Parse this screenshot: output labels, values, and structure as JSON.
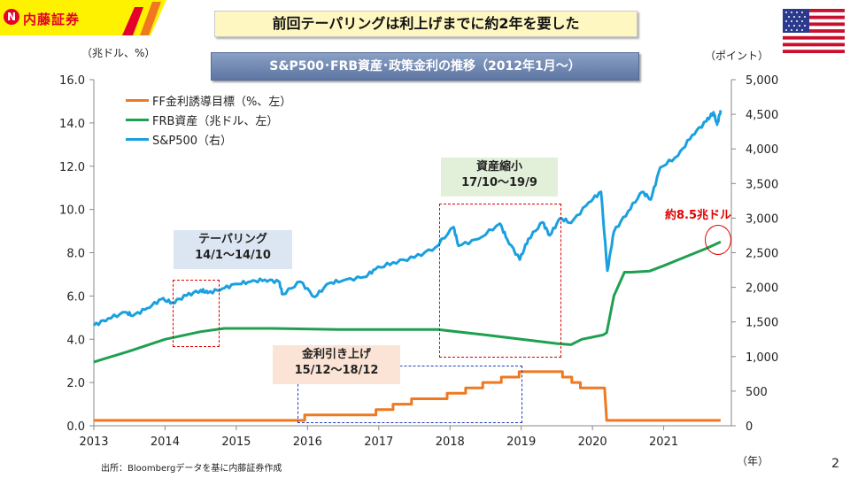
{
  "brand": {
    "name": "内藤証券",
    "color": "#e4002b",
    "bg": "#fff200"
  },
  "title": "前回テーパリングは利上げまでに約2年を要した",
  "subtitle": "S&P500･FRB資産･政策金利の推移（2012年1月～）",
  "flag": "us-flag-icon",
  "left_unit": "（兆ドル、%）",
  "right_unit": "（ポイント）",
  "x_unit": "（年）",
  "source": "出所：Bloombergデータを基に内藤証券作成",
  "page_number": "2",
  "annotations": {
    "tapering": {
      "line1": "テーパリング",
      "line2": "14/1～14/10"
    },
    "qt": {
      "line1": "資産縮小",
      "line2": "17/10～19/9"
    },
    "hike": {
      "line1": "金利引き上げ",
      "line2": "15/12～18/12"
    },
    "frb_note": "約8.5兆ドル"
  },
  "chart_data": {
    "type": "line",
    "title": "S&P500･FRB資産･政策金利の推移（2012年1月～）",
    "xlabel": "（年）",
    "ylabel_left": "（兆ドル、%）",
    "ylabel_right": "（ポイント）",
    "x_range": [
      2013,
      2021.95
    ],
    "x_ticks": [
      "2013",
      "2014",
      "2015",
      "2016",
      "2017",
      "2018",
      "2019",
      "2020",
      "2021"
    ],
    "y_left_range": [
      0,
      16
    ],
    "y_left_ticks": [
      "0.0",
      "2.0",
      "4.0",
      "6.0",
      "8.0",
      "10.0",
      "12.0",
      "14.0",
      "16.0"
    ],
    "y_right_range": [
      0,
      5000
    ],
    "y_right_ticks": [
      "0",
      "500",
      "1,000",
      "1,500",
      "2,000",
      "2,500",
      "3,000",
      "3,500",
      "4,000",
      "4,500",
      "5,000"
    ],
    "series": [
      {
        "name": "FF金利誘導目標（%、左）",
        "axis": "left",
        "color": "#f07820",
        "points": [
          [
            2013.0,
            0.25
          ],
          [
            2015.96,
            0.25
          ],
          [
            2015.96,
            0.5
          ],
          [
            2016.96,
            0.5
          ],
          [
            2016.96,
            0.75
          ],
          [
            2017.2,
            0.75
          ],
          [
            2017.2,
            1.0
          ],
          [
            2017.46,
            1.0
          ],
          [
            2017.46,
            1.25
          ],
          [
            2017.96,
            1.25
          ],
          [
            2017.96,
            1.5
          ],
          [
            2018.22,
            1.5
          ],
          [
            2018.22,
            1.75
          ],
          [
            2018.46,
            1.75
          ],
          [
            2018.46,
            2.0
          ],
          [
            2018.72,
            2.0
          ],
          [
            2018.72,
            2.25
          ],
          [
            2018.97,
            2.25
          ],
          [
            2018.97,
            2.5
          ],
          [
            2019.58,
            2.5
          ],
          [
            2019.58,
            2.25
          ],
          [
            2019.71,
            2.25
          ],
          [
            2019.71,
            2.0
          ],
          [
            2019.83,
            2.0
          ],
          [
            2019.83,
            1.75
          ],
          [
            2020.17,
            1.75
          ],
          [
            2020.2,
            0.25
          ],
          [
            2021.8,
            0.25
          ]
        ]
      },
      {
        "name": "FRB資産（兆ドル、左）",
        "axis": "left",
        "color": "#1fa050",
        "points": [
          [
            2013.0,
            2.95
          ],
          [
            2013.5,
            3.45
          ],
          [
            2014.0,
            4.0
          ],
          [
            2014.5,
            4.35
          ],
          [
            2014.83,
            4.5
          ],
          [
            2015.5,
            4.5
          ],
          [
            2016.5,
            4.45
          ],
          [
            2017.5,
            4.45
          ],
          [
            2017.83,
            4.45
          ],
          [
            2018.5,
            4.2
          ],
          [
            2019.0,
            4.0
          ],
          [
            2019.5,
            3.8
          ],
          [
            2019.7,
            3.75
          ],
          [
            2019.85,
            4.0
          ],
          [
            2020.15,
            4.2
          ],
          [
            2020.2,
            4.3
          ],
          [
            2020.3,
            6.0
          ],
          [
            2020.45,
            7.1
          ],
          [
            2020.55,
            7.1
          ],
          [
            2020.8,
            7.15
          ],
          [
            2021.0,
            7.4
          ],
          [
            2021.3,
            7.8
          ],
          [
            2021.6,
            8.2
          ],
          [
            2021.8,
            8.5
          ]
        ]
      },
      {
        "name": "S&P500（右）",
        "axis": "right",
        "color": "#1aa0e0",
        "points": [
          [
            2013.0,
            1450
          ],
          [
            2013.2,
            1550
          ],
          [
            2013.45,
            1640
          ],
          [
            2013.55,
            1590
          ],
          [
            2013.75,
            1700
          ],
          [
            2013.95,
            1830
          ],
          [
            2014.1,
            1780
          ],
          [
            2014.3,
            1880
          ],
          [
            2014.5,
            1960
          ],
          [
            2014.6,
            1920
          ],
          [
            2014.8,
            1980
          ],
          [
            2015.0,
            2050
          ],
          [
            2015.2,
            2080
          ],
          [
            2015.4,
            2110
          ],
          [
            2015.6,
            2080
          ],
          [
            2015.65,
            1900
          ],
          [
            2015.9,
            2080
          ],
          [
            2016.1,
            1860
          ],
          [
            2016.3,
            2060
          ],
          [
            2016.5,
            2100
          ],
          [
            2016.8,
            2150
          ],
          [
            2016.95,
            2260
          ],
          [
            2017.2,
            2360
          ],
          [
            2017.5,
            2430
          ],
          [
            2017.8,
            2580
          ],
          [
            2018.05,
            2870
          ],
          [
            2018.12,
            2600
          ],
          [
            2018.4,
            2700
          ],
          [
            2018.7,
            2920
          ],
          [
            2018.8,
            2700
          ],
          [
            2018.98,
            2400
          ],
          [
            2019.1,
            2700
          ],
          [
            2019.3,
            2940
          ],
          [
            2019.4,
            2750
          ],
          [
            2019.55,
            3000
          ],
          [
            2019.7,
            2930
          ],
          [
            2019.95,
            3230
          ],
          [
            2020.12,
            3380
          ],
          [
            2020.21,
            2240
          ],
          [
            2020.3,
            2800
          ],
          [
            2020.5,
            3100
          ],
          [
            2020.7,
            3380
          ],
          [
            2020.82,
            3270
          ],
          [
            2020.95,
            3730
          ],
          [
            2021.2,
            3900
          ],
          [
            2021.4,
            4200
          ],
          [
            2021.6,
            4400
          ],
          [
            2021.7,
            4530
          ],
          [
            2021.75,
            4350
          ],
          [
            2021.8,
            4560
          ]
        ]
      }
    ]
  }
}
